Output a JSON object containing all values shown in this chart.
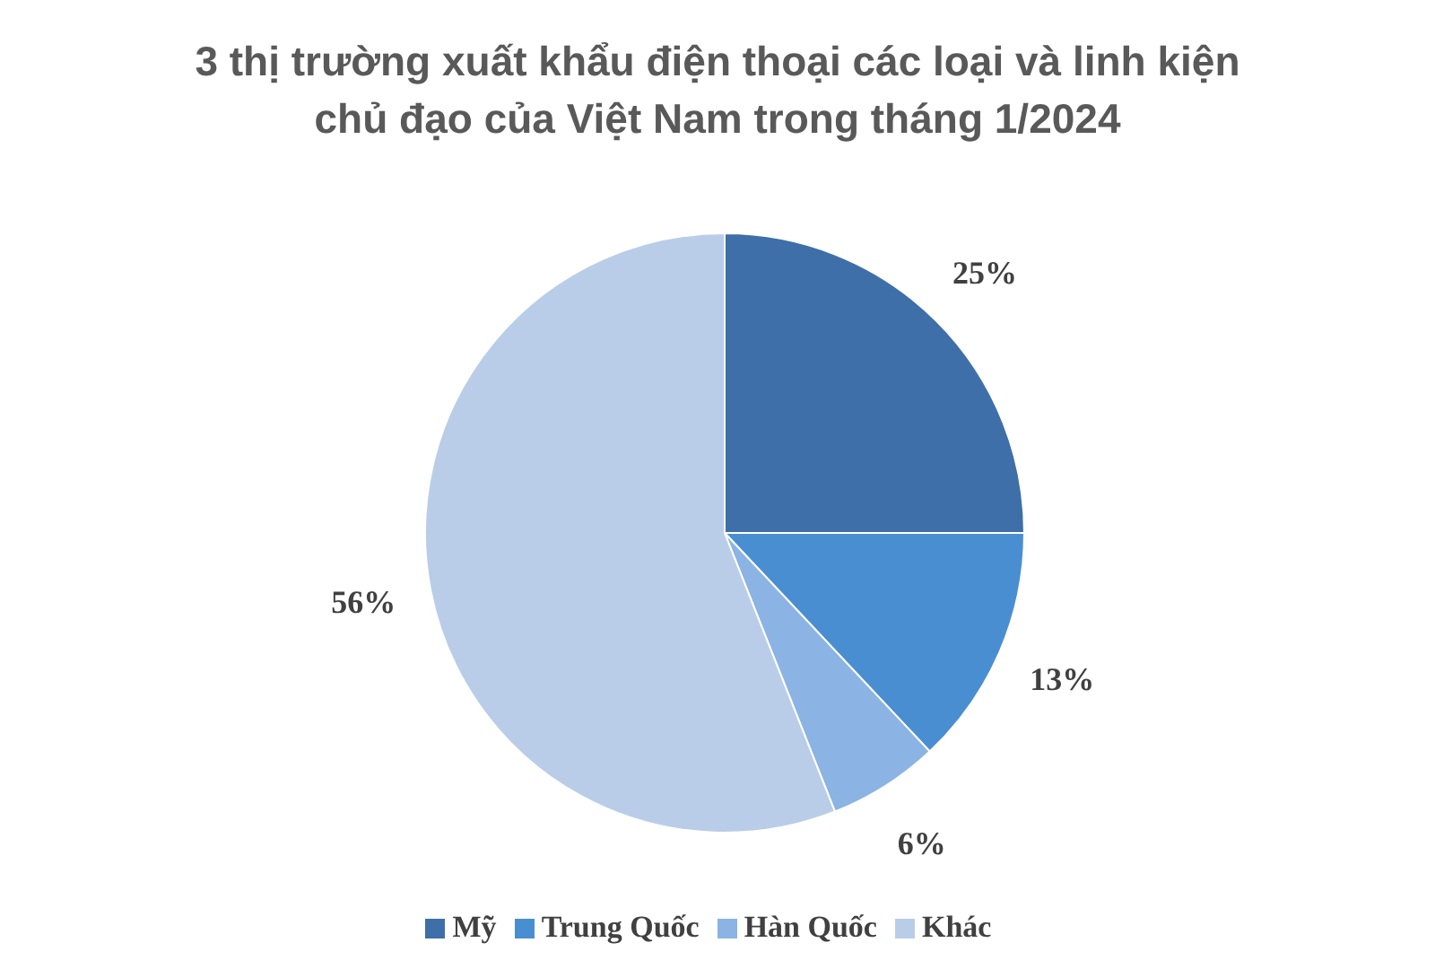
{
  "chart_data": {
    "type": "pie",
    "title": "3 thị trường xuất khẩu điện thoại các loại và linh kiện chủ đạo của Việt Nam trong tháng 1/2024",
    "categories": [
      "Mỹ",
      "Trung Quốc",
      "Hàn Quốc",
      "Khác"
    ],
    "values": [
      25,
      13,
      6,
      56
    ],
    "colors": [
      "#3f6fa8",
      "#4a8ed2",
      "#8bb3e3",
      "#b9cde9"
    ],
    "value_labels": [
      "25%",
      "13%",
      "6%",
      "56%"
    ],
    "legend": "bottom"
  }
}
